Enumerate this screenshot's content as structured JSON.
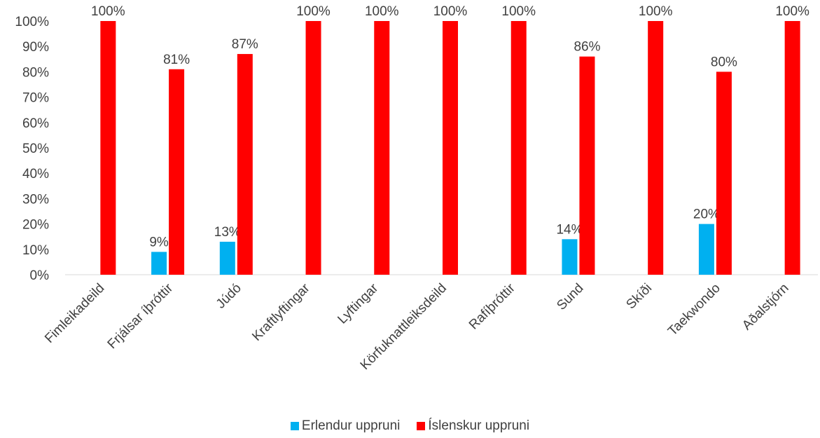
{
  "chart_data": {
    "type": "bar",
    "title": "",
    "xlabel": "",
    "ylabel": "",
    "ylim": [
      0,
      100
    ],
    "ytick_step": 10,
    "y_format": "percent",
    "grid": false,
    "legend_position": "bottom",
    "categories": [
      "Fimleikadeild",
      "Frjálsar íþróttir",
      "Júdó",
      "Kraftlyftingar",
      "Lyftingar",
      "Körfuknattleiksdeild",
      "Rafíþróttir",
      "Sund",
      "Skíði",
      "Taekwondo",
      "Aðalstjórn"
    ],
    "series": [
      {
        "name": "Erlendur uppruni",
        "color": "#00B0F0",
        "values": [
          0,
          9,
          13,
          0,
          0,
          0,
          0,
          14,
          0,
          20,
          0
        ],
        "labels": [
          "",
          "9%",
          "13%",
          "",
          "",
          "",
          "",
          "14%",
          "",
          "20%",
          ""
        ]
      },
      {
        "name": "Íslenskur uppruni",
        "color": "#FF0000",
        "values": [
          100,
          81,
          87,
          100,
          100,
          100,
          100,
          86,
          100,
          80,
          100
        ],
        "labels": [
          "100%",
          "81%",
          "87%",
          "100%",
          "100%",
          "100%",
          "100%",
          "86%",
          "100%",
          "80%",
          "100%"
        ]
      }
    ]
  }
}
